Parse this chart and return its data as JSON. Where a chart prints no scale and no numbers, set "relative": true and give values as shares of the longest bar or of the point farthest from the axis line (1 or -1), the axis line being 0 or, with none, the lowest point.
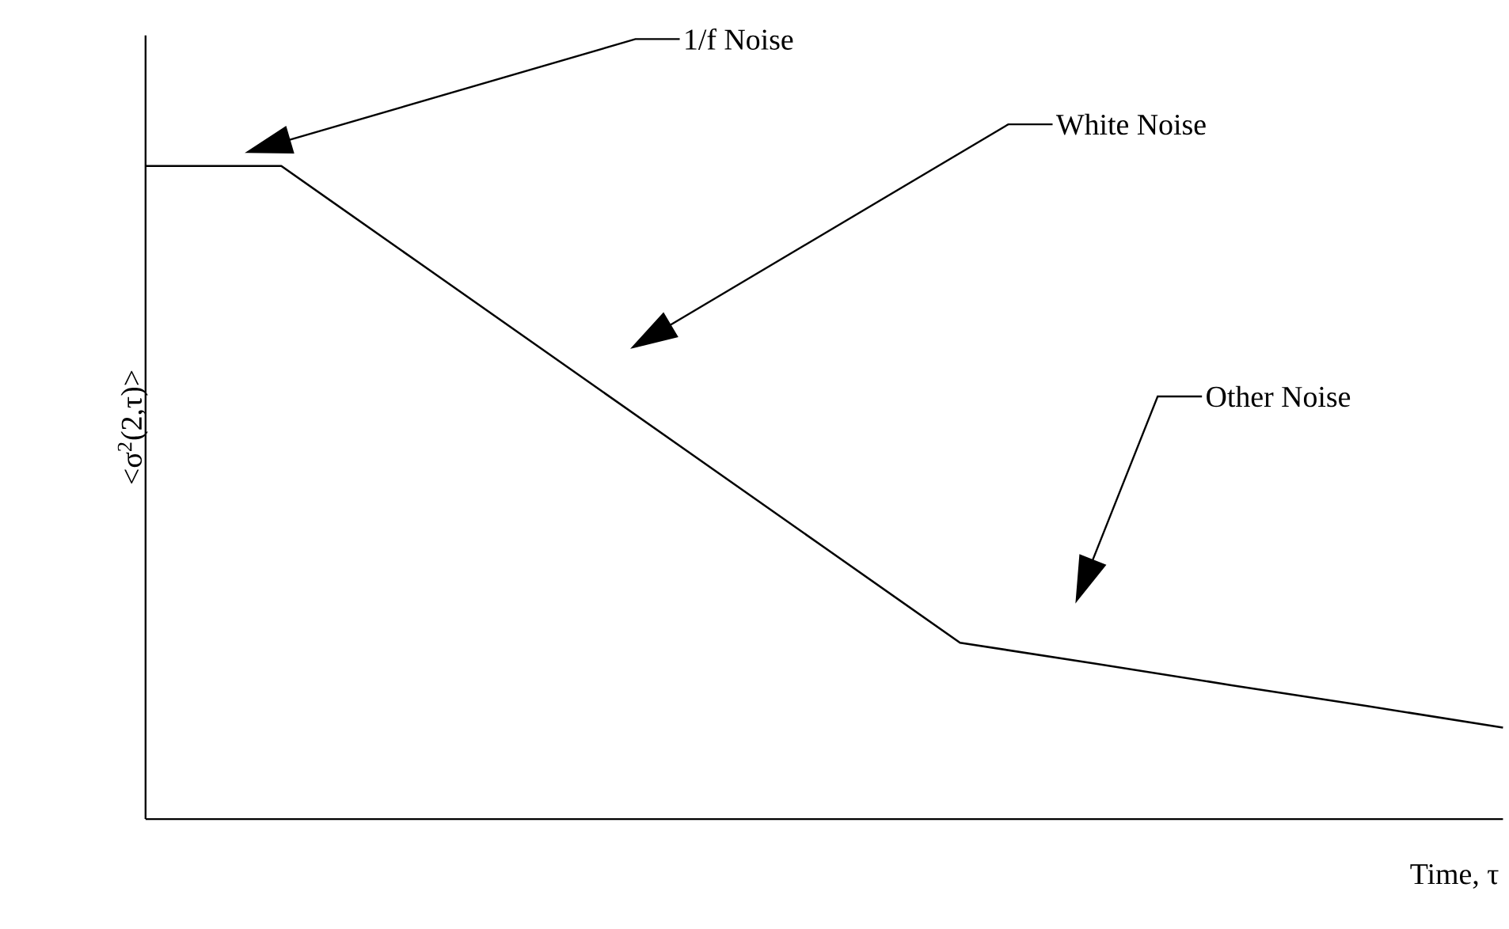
{
  "chart_data": {
    "type": "line",
    "relative": true,
    "xlabel": "Time, τ",
    "ylabel": "<σ$^{2}$(2,τ)>",
    "categories": [
      null,
      null,
      null,
      null,
      null,
      null,
      null,
      null,
      null,
      null,
      null
    ],
    "values": [
      1,
      1,
      0.854,
      0.708,
      0.562,
      0.416,
      0.27,
      0.238,
      0.205,
      0.173,
      0.14
    ],
    "color": "#000000",
    "marker": "none",
    "line_style": "solid",
    "annotations": [
      "1/f Noise",
      "White Noise",
      "Other Noise"
    ]
  }
}
